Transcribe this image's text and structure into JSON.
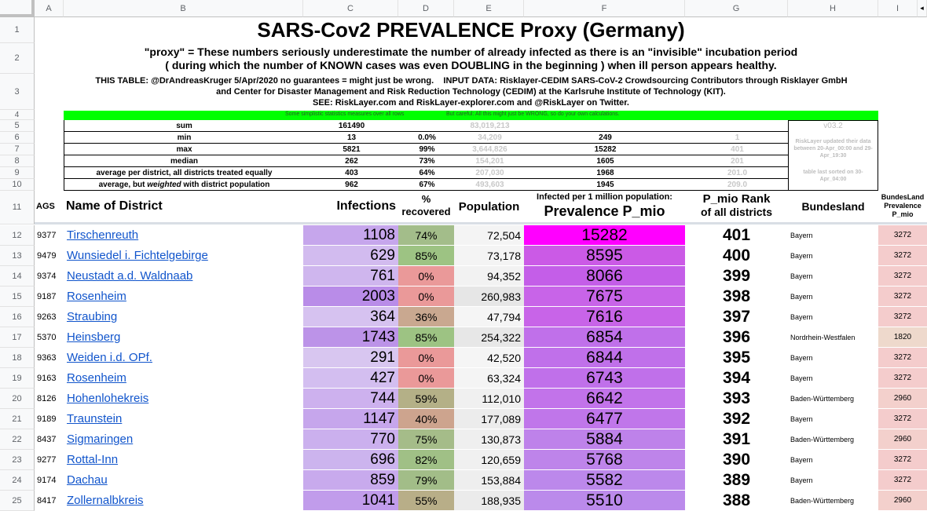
{
  "columns": [
    "A",
    "B",
    "C",
    "D",
    "E",
    "F",
    "G",
    "H",
    "I"
  ],
  "row_numbers": [
    "1",
    "2",
    "3",
    "4",
    "5",
    "6",
    "7",
    "8",
    "9",
    "10",
    "11",
    "12",
    "13",
    "14",
    "15",
    "16",
    "17",
    "18",
    "19",
    "20",
    "21",
    "22",
    "23",
    "24",
    "25"
  ],
  "title": "SARS-Cov2 PREVALENCE Proxy (Germany)",
  "subtitle_line1": "\"proxy\" = These numbers seriously underestimate the number of already infected as there is an \"invisible\" incubation period",
  "subtitle_line2": "( during which the number of KNOWN cases was even DOUBLING in the beginning ) when ill person appears healthy.",
  "info_line1": "THIS TABLE: @DrAndreasKruger 5/Apr/2020 no guarantees = might just be wrong.    INPUT DATA: Risklayer-CEDIM SARS-CoV-2 Crowdsourcing Contributors through Risklayer GmbH",
  "info_line2": "and Center for Disaster Management and Risk Reduction Technology (CEDIM) at the Karlsruhe Institute of Technology (KIT).",
  "info_line3": "SEE: RiskLayer.com and RiskLayer-explorer.com and @RiskLayer on Twitter.",
  "banner_left": "Some simplistic statistics measures over all rows",
  "banner_right": "But careful: All this might just be WRONG, so do your own calculations.",
  "stats": [
    {
      "label": "sum",
      "infections": "161490",
      "recovered": "",
      "population": "83,019,213",
      "prevalence": "",
      "rank": ""
    },
    {
      "label": "min",
      "infections": "13",
      "recovered": "0.0%",
      "population": "34,209",
      "prevalence": "249",
      "rank": "1"
    },
    {
      "label": "max",
      "infections": "5821",
      "recovered": "99%",
      "population": "3,644,826",
      "prevalence": "15282",
      "rank": "401"
    },
    {
      "label": "median",
      "infections": "262",
      "recovered": "73%",
      "population": "154,201",
      "prevalence": "1605",
      "rank": "201"
    },
    {
      "label": "average per district, all districts treated equally",
      "infections": "403",
      "recovered": "64%",
      "population": "207,030",
      "prevalence": "1968",
      "rank": "201.0"
    },
    {
      "label_pre": "average, but ",
      "label_em": "weighted",
      "label_post": " with district population",
      "infections": "962",
      "recovered": "67%",
      "population": "493,603",
      "prevalence": "1945",
      "rank": "209.0"
    }
  ],
  "side_note": {
    "version": "v03.2",
    "updated": "RiskLayer updated their data between 20-Apr_00:00 and 29-Apr_19:30",
    "sorted": "table last sorted on 30-Apr_04:00"
  },
  "header": {
    "ags": "AGS",
    "name": "Name of District",
    "infections": "Infections",
    "recovered_l1": "%",
    "recovered_l2": "recovered",
    "population": "Population",
    "prev_l1": "Infected per 1 million population:",
    "prev_l2": "Prevalence P_mio",
    "rank_l1": "P_mio Rank",
    "rank_l2": "of all districts",
    "bundesland": "Bundesland",
    "bl_prev_l1": "BundesLand",
    "bl_prev_l2": "Prevalence",
    "bl_prev_l3": "P_mio"
  },
  "rows": [
    {
      "ags": "9377",
      "name": "Tirschenreuth",
      "infections": "1108",
      "recovered": "74%",
      "population": "72,504",
      "prevalence": "15282",
      "rank": "401",
      "bundesland": "Bayern",
      "bl_prev": "3272"
    },
    {
      "ags": "9479",
      "name": "Wunsiedel i. Fichtelgebirge",
      "infections": "629",
      "recovered": "85%",
      "population": "73,178",
      "prevalence": "8595",
      "rank": "400",
      "bundesland": "Bayern",
      "bl_prev": "3272"
    },
    {
      "ags": "9374",
      "name": "Neustadt a.d. Waldnaab",
      "infections": "761",
      "recovered": "0%",
      "population": "94,352",
      "prevalence": "8066",
      "rank": "399",
      "bundesland": "Bayern",
      "bl_prev": "3272"
    },
    {
      "ags": "9187",
      "name": "Rosenheim",
      "infections": "2003",
      "recovered": "0%",
      "population": "260,983",
      "prevalence": "7675",
      "rank": "398",
      "bundesland": "Bayern",
      "bl_prev": "3272"
    },
    {
      "ags": "9263",
      "name": "Straubing",
      "infections": "364",
      "recovered": "36%",
      "population": "47,794",
      "prevalence": "7616",
      "rank": "397",
      "bundesland": "Bayern",
      "bl_prev": "3272"
    },
    {
      "ags": "5370",
      "name": "Heinsberg",
      "infections": "1743",
      "recovered": "85%",
      "population": "254,322",
      "prevalence": "6854",
      "rank": "396",
      "bundesland": "Nordrhein-Westfalen",
      "bl_prev": "1820"
    },
    {
      "ags": "9363",
      "name": "Weiden i.d. OPf.",
      "infections": "291",
      "recovered": "0%",
      "population": "42,520",
      "prevalence": "6844",
      "rank": "395",
      "bundesland": "Bayern",
      "bl_prev": "3272"
    },
    {
      "ags": "9163",
      "name": "Rosenheim",
      "infections": "427",
      "recovered": "0%",
      "population": "63,324",
      "prevalence": "6743",
      "rank": "394",
      "bundesland": "Bayern",
      "bl_prev": "3272"
    },
    {
      "ags": "8126",
      "name": "Hohenlohekreis",
      "infections": "744",
      "recovered": "59%",
      "population": "112,010",
      "prevalence": "6642",
      "rank": "393",
      "bundesland": "Baden-Württemberg",
      "bl_prev": "2960"
    },
    {
      "ags": "9189",
      "name": "Traunstein",
      "infections": "1147",
      "recovered": "40%",
      "population": "177,089",
      "prevalence": "6477",
      "rank": "392",
      "bundesland": "Bayern",
      "bl_prev": "3272"
    },
    {
      "ags": "8437",
      "name": "Sigmaringen",
      "infections": "770",
      "recovered": "75%",
      "population": "130,873",
      "prevalence": "5884",
      "rank": "391",
      "bundesland": "Baden-Württemberg",
      "bl_prev": "2960"
    },
    {
      "ags": "9277",
      "name": "Rottal-Inn",
      "infections": "696",
      "recovered": "82%",
      "population": "120,659",
      "prevalence": "5768",
      "rank": "390",
      "bundesland": "Bayern",
      "bl_prev": "3272"
    },
    {
      "ags": "9174",
      "name": "Dachau",
      "infections": "859",
      "recovered": "79%",
      "population": "153,884",
      "prevalence": "5582",
      "rank": "389",
      "bundesland": "Bayern",
      "bl_prev": "3272"
    },
    {
      "ags": "8417",
      "name": "Zollernalbkreis",
      "infections": "1041",
      "recovered": "55%",
      "population": "188,935",
      "prevalence": "5510",
      "rank": "388",
      "bundesland": "Baden-Württemberg",
      "bl_prev": "2960"
    }
  ],
  "colors": {
    "header_bg": "#f8f9fa",
    "banner": "#00ff00",
    "link": "#1155cc",
    "top_prevalence": "#ff00ff",
    "infections": [
      "#c6a6ec",
      "#d2bbef",
      "#cfb6ee",
      "#b98ce8",
      "#d6c2f0",
      "#bc93e8",
      "#d8c6f0",
      "#d3bef0",
      "#cdb1ee",
      "#c6a6ec",
      "#cbb0ee",
      "#ccb4ee",
      "#c8aaed",
      "#c19ceb"
    ],
    "recovered": [
      "#a3bd8a",
      "#9dc383",
      "#ea9999",
      "#ea9999",
      "#c9a890",
      "#9dc383",
      "#ea9999",
      "#ea9999",
      "#b4b087",
      "#cda48e",
      "#a5bc89",
      "#a0c086",
      "#a2bd88",
      "#b8ae88"
    ],
    "population": [
      "#f4f4f4",
      "#f4f4f4",
      "#f2f2f2",
      "#e6e6e6",
      "#f5f5f5",
      "#e7e7e7",
      "#f5f5f5",
      "#f4f4f4",
      "#f0f0f0",
      "#ececec",
      "#efefef",
      "#f0f0f0",
      "#eeeeee",
      "#ebebeb"
    ],
    "prevalence": [
      "#ff00ff",
      "#cb5ae6",
      "#c45ee8",
      "#c864e8",
      "#c864e8",
      "#c070ea",
      "#c070ea",
      "#c070ea",
      "#c273ea",
      "#c076ea",
      "#be82ea",
      "#be84ea",
      "#bc88eb",
      "#bb8aeb"
    ],
    "bl_prev": [
      "#f4cccc",
      "#f4cccc",
      "#f4cccc",
      "#f4cccc",
      "#f4cccc",
      "#eed9cc",
      "#f4cccc",
      "#f4cccc",
      "#f3d0cc",
      "#f4cccc",
      "#f3d0cc",
      "#f4cccc",
      "#f4cccc",
      "#f3d0cc"
    ]
  }
}
